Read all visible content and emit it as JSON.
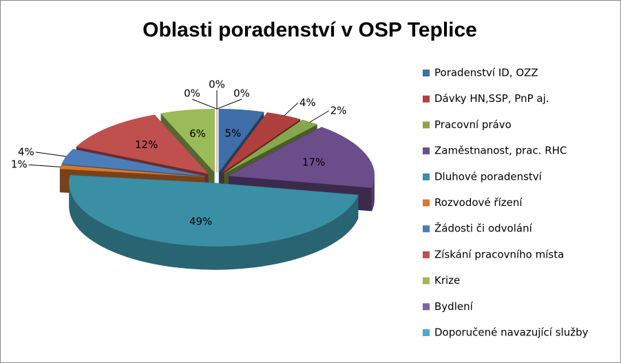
{
  "chart_data": {
    "type": "pie3d",
    "title": "Oblasti poradenství v OSP Teplice",
    "categories": [
      "Poradenství ID, OZZ",
      "Dávky HN,SSP, PnP aj.",
      "Pracovní právo",
      "Zaměstnanost, prac. RHC",
      "Dluhové poradenství",
      "Rozvodové řízení",
      "Žádosti či odvolání",
      "Získání pracovního místa",
      "Krize",
      "Bydlení",
      "Doporučené navazující služby",
      null
    ],
    "values": [
      5,
      4,
      2,
      17,
      49,
      1,
      4,
      12,
      6,
      0,
      0,
      0
    ],
    "value_labels": [
      "5%",
      "4%",
      "2%",
      "17%",
      "49%",
      "1%",
      "4%",
      "12%",
      "6%",
      "0%",
      "0%",
      "0%"
    ],
    "colors": [
      "#3f6ea8",
      "#b0403d",
      "#87a84a",
      "#6b4d8c",
      "#3a8fa5",
      "#d9772e",
      "#4a7ebb",
      "#c0504d",
      "#9bbb59",
      "#8064a2",
      "#4bacc6",
      "#f79646"
    ],
    "legend": "right"
  }
}
